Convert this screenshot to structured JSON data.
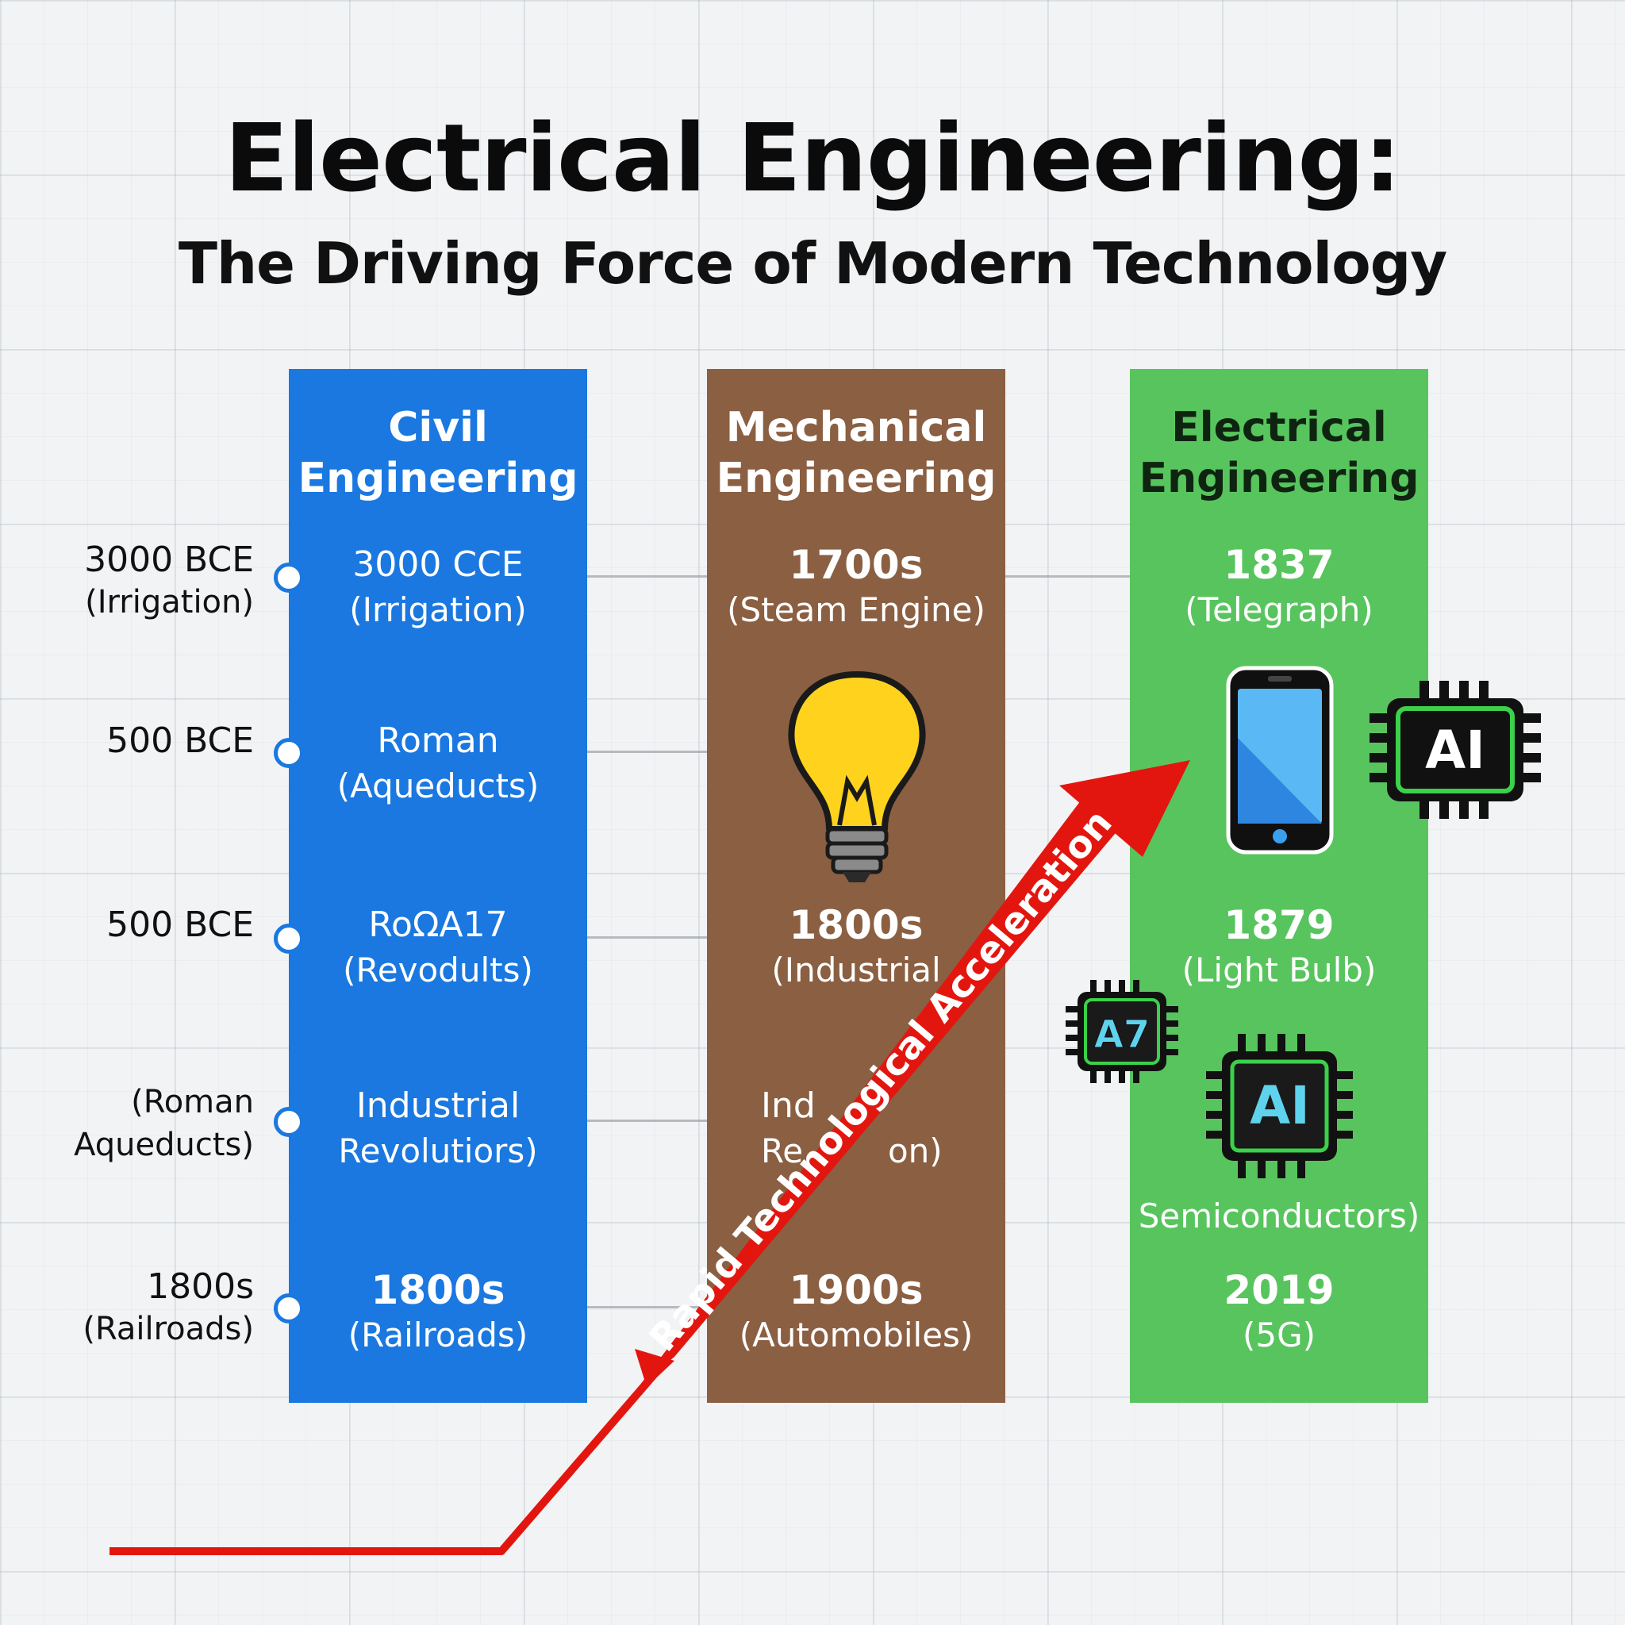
{
  "title": "Electrical Engineering:",
  "subtitle": "The Driving Force of Modern Technology",
  "axis_labels": [
    {
      "year": "3000 BCE",
      "event": "(Irrigation)"
    },
    {
      "year": "500 BCE",
      "event": ""
    },
    {
      "year": "500 BCE",
      "event": ""
    },
    {
      "year": "(Roman",
      "event": "Aqueducts)"
    },
    {
      "year": "1800s",
      "event": "(Railroads)"
    }
  ],
  "columns": {
    "civil": {
      "heading_line1": "Civil",
      "heading_line2": "Engineering",
      "color": "#1a78e0",
      "entries": [
        {
          "year": "3000 CCE",
          "event": "(Irrigation)"
        },
        {
          "year": "Roman",
          "event": "(Aqueducts)"
        },
        {
          "year": "RoΩA17",
          "event": "(Revodults)"
        },
        {
          "year": "Industrial",
          "event": "Revolutiors)"
        },
        {
          "year": "1800s",
          "event": "(Railroads)"
        }
      ]
    },
    "mechanical": {
      "heading_line1": "Mechanical",
      "heading_line2": "Engineering",
      "color": "#8b5f42",
      "entries": [
        {
          "year": "1700s",
          "event": "(Steam Engine)"
        },
        {
          "year": "1800s",
          "event": "(Industrial"
        },
        {
          "year": "Ind",
          "event": "Re        on)"
        },
        {
          "year": "1900s",
          "event": "(Automobiles)"
        }
      ]
    },
    "electrical": {
      "heading_line1": "Electrical",
      "heading_line2": "Engineering",
      "color": "#58c45e",
      "entries": [
        {
          "year": "1837",
          "event": "(Telegraph)"
        },
        {
          "year": "1879",
          "event": "(Light Bulb)"
        },
        {
          "year": "",
          "event": "Semiconductors)"
        },
        {
          "year": "2019",
          "event": "(5G)"
        }
      ]
    }
  },
  "chips": {
    "chip_ai_top": "AI",
    "chip_a7": "A7",
    "chip_ai_bottom": "AI"
  },
  "arrow_label": "Rapid Technological Acceleration",
  "icons": {
    "light_bulb": "light-bulb-icon",
    "smartphone": "smartphone-icon",
    "chip": "microchip-icon"
  },
  "accent_colors": {
    "arrow": "#e3160f",
    "chip_outline": "#3bd14a",
    "chip_a7_text": "#5fd3ee",
    "dot": "#1a78e0"
  }
}
